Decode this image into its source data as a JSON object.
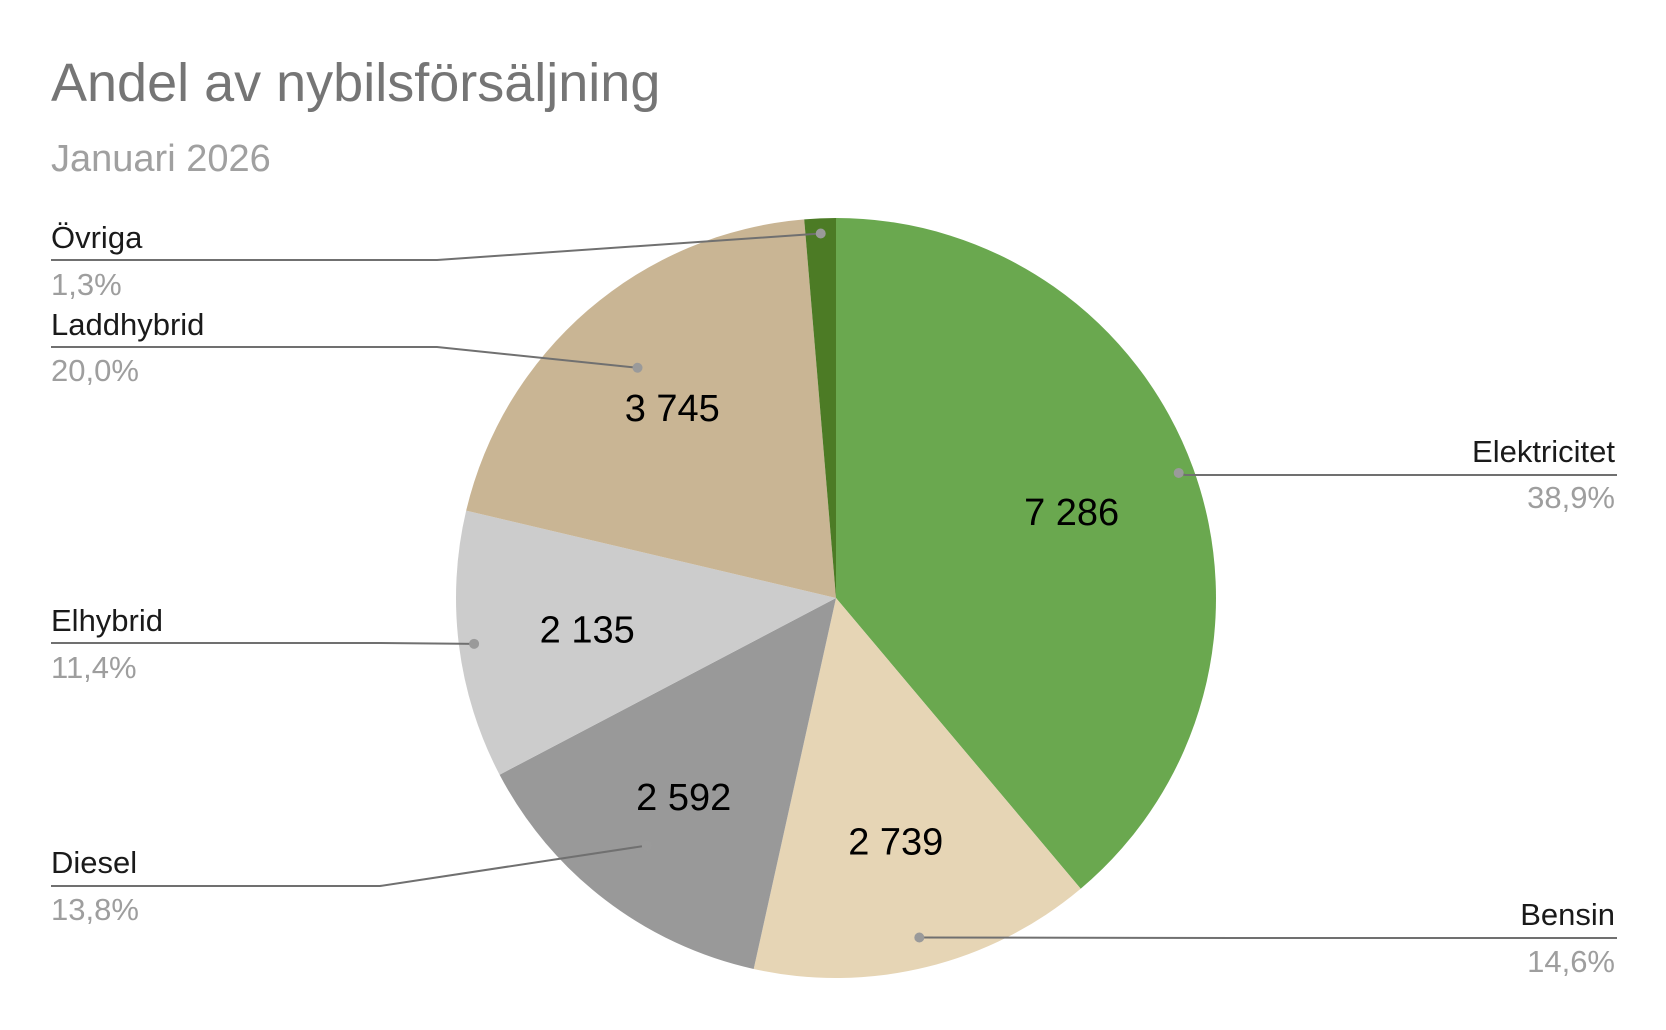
{
  "chart_data": {
    "type": "pie",
    "title": "Andel av nybilsförsäljning",
    "subtitle": "Januari 2026",
    "slices": [
      {
        "label": "Elektricitet",
        "value": 7286,
        "value_label": "7 286",
        "percent_label": "38,9%",
        "color": "#6aa84f"
      },
      {
        "label": "Bensin",
        "value": 2739,
        "value_label": "2 739",
        "percent_label": "14,6%",
        "color": "#e6d5b5"
      },
      {
        "label": "Diesel",
        "value": 2592,
        "value_label": "2 592",
        "percent_label": "13,8%",
        "color": "#999999"
      },
      {
        "label": "Elhybrid",
        "value": 2135,
        "value_label": "2 135",
        "percent_label": "11,4%",
        "color": "#cccccc"
      },
      {
        "label": "Laddhybrid",
        "value": 3745,
        "value_label": "3 745",
        "percent_label": "20,0%",
        "color": "#c9b594"
      },
      {
        "label": "Övriga",
        "value": 250,
        "value_label": "",
        "percent_label": "1,3%",
        "color": "#4c7b25"
      }
    ],
    "start_angle": "12 o'clock",
    "direction": "clockwise",
    "legend": "callouts left and right"
  }
}
